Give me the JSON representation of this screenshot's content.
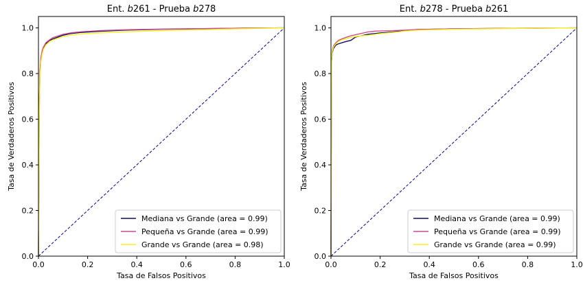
{
  "chart_data": [
    {
      "type": "line",
      "title_prefix": "Ent. ",
      "title_train": "b",
      "title_train_num": "261",
      "title_mid": " - Prueba ",
      "title_test": "b",
      "title_test_num": "278",
      "xlabel": "Tasa de Falsos Positivos",
      "ylabel": "Tasa de Verdaderos Positivos",
      "xlim": [
        0,
        1
      ],
      "ylim": [
        0,
        1.05
      ],
      "xticks": [
        "0.0",
        "0.2",
        "0.4",
        "0.6",
        "0.8",
        "1.0"
      ],
      "yticks": [
        "0.0",
        "0.2",
        "0.4",
        "0.6",
        "0.8",
        "1.0"
      ],
      "grid": false,
      "legend_position": "bottom-right",
      "diagonal": {
        "x": [
          0,
          1
        ],
        "y": [
          0,
          1
        ],
        "color": "#00008b",
        "style": "dashed"
      },
      "series": [
        {
          "name": "Mediana vs Grande (area = 0.99)",
          "color": "#0b0b60",
          "x": [
            0,
            0.003,
            0.006,
            0.01,
            0.015,
            0.02,
            0.03,
            0.045,
            0.06,
            0.08,
            0.1,
            0.13,
            0.17,
            0.25,
            0.35,
            0.5,
            0.7,
            0.85,
            1
          ],
          "y": [
            0,
            0.62,
            0.8,
            0.86,
            0.89,
            0.91,
            0.93,
            0.945,
            0.952,
            0.96,
            0.968,
            0.975,
            0.98,
            0.985,
            0.99,
            0.994,
            0.997,
            0.999,
            1
          ]
        },
        {
          "name": "Pequeña vs Grande (area = 0.99)",
          "color": "#cc4c8c",
          "x": [
            0,
            0.003,
            0.006,
            0.01,
            0.015,
            0.02,
            0.03,
            0.045,
            0.06,
            0.08,
            0.1,
            0.13,
            0.17,
            0.25,
            0.35,
            0.5,
            0.7,
            0.85,
            1
          ],
          "y": [
            0,
            0.64,
            0.81,
            0.87,
            0.9,
            0.915,
            0.935,
            0.948,
            0.958,
            0.965,
            0.972,
            0.978,
            0.983,
            0.988,
            0.992,
            0.995,
            0.997,
            0.999,
            1
          ]
        },
        {
          "name": "Grande vs Grande (area = 0.98)",
          "color": "#f5f01e",
          "x": [
            0,
            0.003,
            0.006,
            0.01,
            0.015,
            0.02,
            0.03,
            0.045,
            0.06,
            0.08,
            0.1,
            0.13,
            0.17,
            0.25,
            0.35,
            0.5,
            0.7,
            0.85,
            1
          ],
          "y": [
            0,
            0.6,
            0.78,
            0.85,
            0.885,
            0.905,
            0.925,
            0.94,
            0.948,
            0.955,
            0.962,
            0.968,
            0.973,
            0.978,
            0.983,
            0.988,
            0.993,
            0.997,
            1
          ]
        }
      ]
    },
    {
      "type": "line",
      "title_prefix": "Ent. ",
      "title_train": "b",
      "title_train_num": "278",
      "title_mid": " - Prueba ",
      "title_test": "b",
      "title_test_num": "261",
      "xlabel": "Tasa de Falsos Positivos",
      "ylabel": "Tasa de Verdaderos Positivos",
      "xlim": [
        0,
        1
      ],
      "ylim": [
        0,
        1.05
      ],
      "xticks": [
        "0.0",
        "0.2",
        "0.4",
        "0.6",
        "0.8",
        "1.0"
      ],
      "yticks": [
        "0.0",
        "0.2",
        "0.4",
        "0.6",
        "0.8",
        "1.0"
      ],
      "grid": false,
      "legend_position": "bottom-right",
      "diagonal": {
        "x": [
          0,
          1
        ],
        "y": [
          0,
          1
        ],
        "color": "#00008b",
        "style": "dashed"
      },
      "series": [
        {
          "name": "Mediana vs Grande (area = 0.99)",
          "color": "#0b0b60",
          "x": [
            0,
            0.002,
            0.005,
            0.01,
            0.02,
            0.03,
            0.045,
            0.06,
            0.08,
            0.1,
            0.12,
            0.15,
            0.2,
            0.25,
            0.3,
            0.35,
            0.5,
            0.7,
            0.85,
            1
          ],
          "y": [
            0,
            0.85,
            0.89,
            0.91,
            0.925,
            0.93,
            0.935,
            0.94,
            0.945,
            0.96,
            0.965,
            0.972,
            0.978,
            0.982,
            0.988,
            0.993,
            0.996,
            0.998,
            0.999,
            1
          ]
        },
        {
          "name": "Pequeña vs Grande (area = 0.99)",
          "color": "#cc4c8c",
          "x": [
            0,
            0.002,
            0.005,
            0.01,
            0.02,
            0.03,
            0.045,
            0.06,
            0.08,
            0.1,
            0.12,
            0.15,
            0.18,
            0.25,
            0.3,
            0.35,
            0.5,
            0.7,
            0.85,
            1
          ],
          "y": [
            0,
            0.87,
            0.9,
            0.92,
            0.935,
            0.945,
            0.952,
            0.958,
            0.965,
            0.97,
            0.975,
            0.982,
            0.986,
            0.988,
            0.99,
            0.993,
            0.996,
            0.998,
            0.999,
            1
          ]
        },
        {
          "name": "Grande vs Grande (area = 0.99)",
          "color": "#f5f01e",
          "x": [
            0,
            0.002,
            0.005,
            0.01,
            0.02,
            0.03,
            0.045,
            0.06,
            0.08,
            0.1,
            0.12,
            0.15,
            0.2,
            0.25,
            0.3,
            0.35,
            0.5,
            0.7,
            0.85,
            1
          ],
          "y": [
            0,
            0.86,
            0.895,
            0.915,
            0.93,
            0.94,
            0.948,
            0.952,
            0.958,
            0.962,
            0.965,
            0.968,
            0.975,
            0.98,
            0.986,
            0.99,
            0.994,
            0.997,
            0.999,
            1
          ]
        }
      ]
    }
  ]
}
